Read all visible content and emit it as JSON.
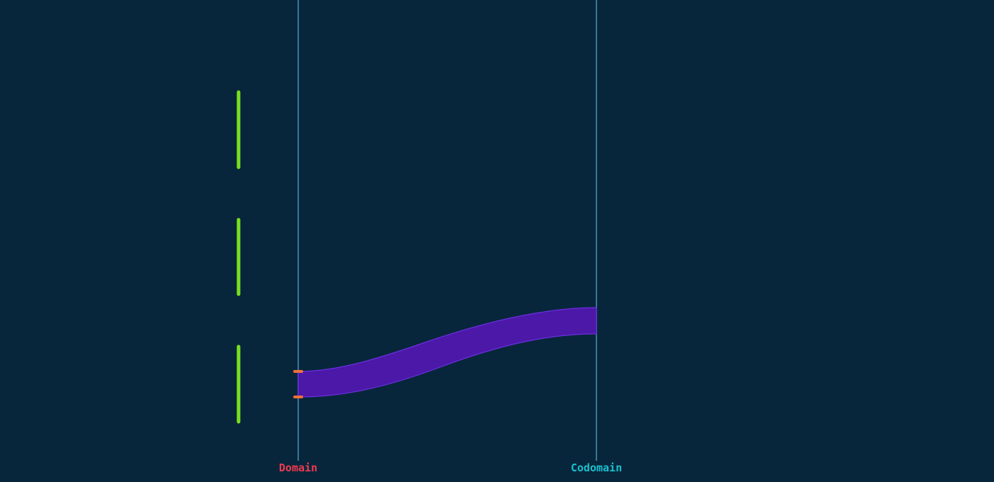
{
  "diagram": {
    "domain_label": "Domain",
    "codomain_label": "Codomain",
    "colors": {
      "background": "#07263b",
      "axis_line": "#4f8fb3",
      "domain_label": "#f0394f",
      "codomain_label": "#1bbfcf",
      "mapping_band": "#4b18a8",
      "mapping_band_edge": "#6c2ee0",
      "bracket": "#78e01f",
      "endpoint_marker": "#f0703a"
    },
    "icons": {
      "brackets": "vertical-bar",
      "endpoints": "dash-marker"
    }
  }
}
